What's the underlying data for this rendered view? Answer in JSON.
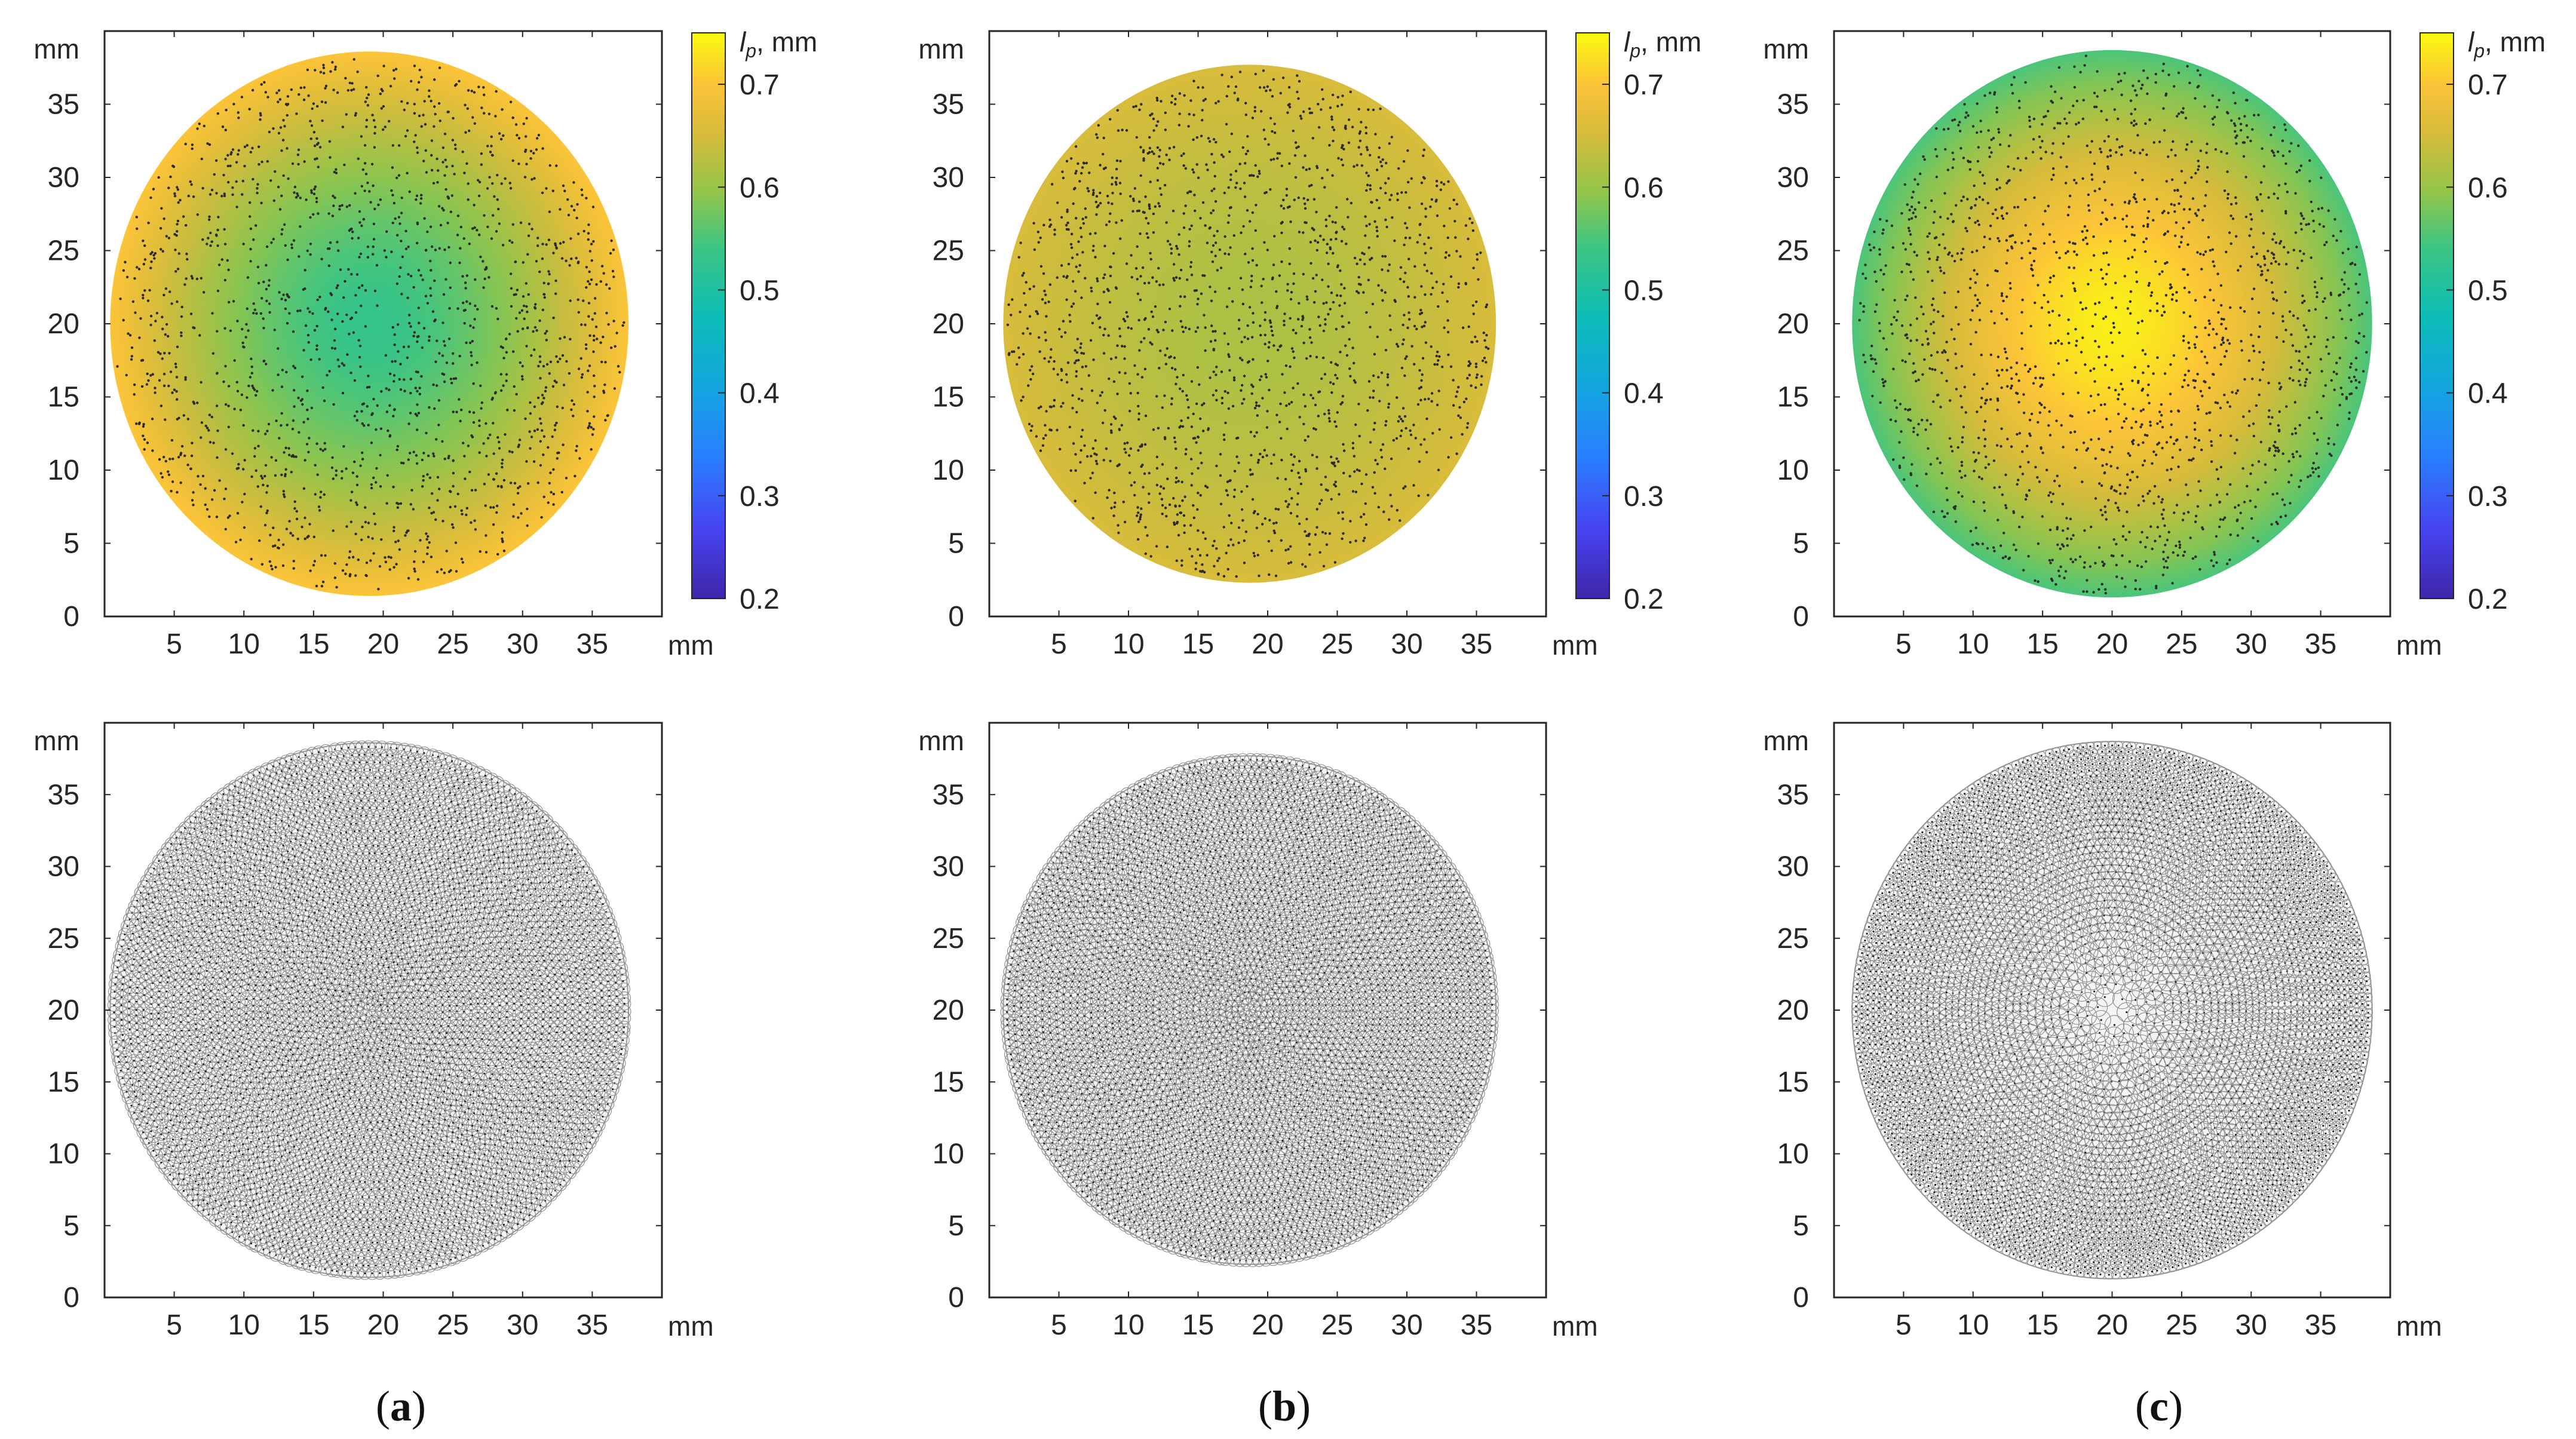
{
  "figure": {
    "captions": [
      {
        "open": "(",
        "letter": "a",
        "close": ")"
      },
      {
        "open": "(",
        "letter": "b",
        "close": ")"
      },
      {
        "open": "(",
        "letter": "c",
        "close": ")"
      }
    ]
  },
  "chart_data": [
    {
      "type": "heatmap",
      "panel": "a",
      "row": "top",
      "xlabel": "mm",
      "ylabel": "mm",
      "xlim": [
        0,
        40
      ],
      "ylim": [
        0,
        40
      ],
      "xticks": [
        5,
        10,
        15,
        20,
        25,
        30,
        35
      ],
      "yticks": [
        0,
        5,
        10,
        15,
        20,
        25,
        30,
        35
      ],
      "domain": {
        "shape": "circle",
        "center": [
          19,
          20
        ],
        "radius": 18.6
      },
      "field": {
        "center_value": 0.53,
        "edge_value": 0.7
      },
      "colorbar": {
        "label": "lp, mm",
        "range": [
          0.2,
          0.75
        ],
        "ticks": [
          0.2,
          0.3,
          0.4,
          0.5,
          0.6,
          0.7
        ],
        "colormap": "parula"
      },
      "grid": false
    },
    {
      "type": "heatmap",
      "panel": "b",
      "row": "top",
      "xlabel": "mm",
      "ylabel": "mm",
      "xlim": [
        0,
        40
      ],
      "ylim": [
        0,
        40
      ],
      "xticks": [
        5,
        10,
        15,
        20,
        25,
        30,
        35
      ],
      "yticks": [
        0,
        5,
        10,
        15,
        20,
        25,
        30,
        35
      ],
      "domain": {
        "shape": "circle",
        "center": [
          18.7,
          20
        ],
        "radius": 17.7
      },
      "field": {
        "center_value": 0.615,
        "edge_value": 0.655
      },
      "colorbar": {
        "label": "lp, mm",
        "range": [
          0.2,
          0.75
        ],
        "ticks": [
          0.2,
          0.3,
          0.4,
          0.5,
          0.6,
          0.7
        ],
        "colormap": "parula"
      },
      "grid": false
    },
    {
      "type": "heatmap",
      "panel": "c",
      "row": "top",
      "xlabel": "mm",
      "ylabel": "mm",
      "xlim": [
        0,
        40
      ],
      "ylim": [
        0,
        40
      ],
      "xticks": [
        5,
        10,
        15,
        20,
        25,
        30,
        35
      ],
      "yticks": [
        0,
        5,
        10,
        15,
        20,
        25,
        30,
        35
      ],
      "domain": {
        "shape": "circle",
        "center": [
          20,
          20
        ],
        "radius": 18.7
      },
      "field": {
        "center_value": 0.74,
        "edge_value": 0.55
      },
      "colorbar": {
        "label": "lp, mm",
        "range": [
          0.2,
          0.75
        ],
        "ticks": [
          0.2,
          0.3,
          0.4,
          0.5,
          0.6,
          0.7
        ],
        "colormap": "parula"
      },
      "grid": false
    },
    {
      "type": "scatter",
      "panel": "a",
      "row": "bottom",
      "xlabel": "mm",
      "ylabel": "mm",
      "xlim": [
        0,
        40
      ],
      "ylim": [
        0,
        40
      ],
      "xticks": [
        5,
        10,
        15,
        20,
        25,
        30,
        35
      ],
      "yticks": [
        0,
        5,
        10,
        15,
        20,
        25,
        30,
        35
      ],
      "domain": {
        "shape": "circle",
        "center": [
          19,
          20
        ],
        "radius": 18.6
      },
      "grid": false
    },
    {
      "type": "scatter",
      "panel": "b",
      "row": "bottom",
      "xlabel": "mm",
      "ylabel": "mm",
      "xlim": [
        0,
        40
      ],
      "ylim": [
        0,
        40
      ],
      "xticks": [
        5,
        10,
        15,
        20,
        25,
        30,
        35
      ],
      "yticks": [
        0,
        5,
        10,
        15,
        20,
        25,
        30,
        35
      ],
      "domain": {
        "shape": "circle",
        "center": [
          18.7,
          20
        ],
        "radius": 17.7
      },
      "grid": false
    },
    {
      "type": "scatter",
      "panel": "c",
      "row": "bottom",
      "xlabel": "mm",
      "ylabel": "mm",
      "xlim": [
        0,
        40
      ],
      "ylim": [
        0,
        40
      ],
      "xticks": [
        5,
        10,
        15,
        20,
        25,
        30,
        35
      ],
      "yticks": [
        0,
        5,
        10,
        15,
        20,
        25,
        30,
        35
      ],
      "domain": {
        "shape": "circle",
        "center": [
          20,
          20
        ],
        "radius": 18.7
      },
      "grid": false
    }
  ]
}
